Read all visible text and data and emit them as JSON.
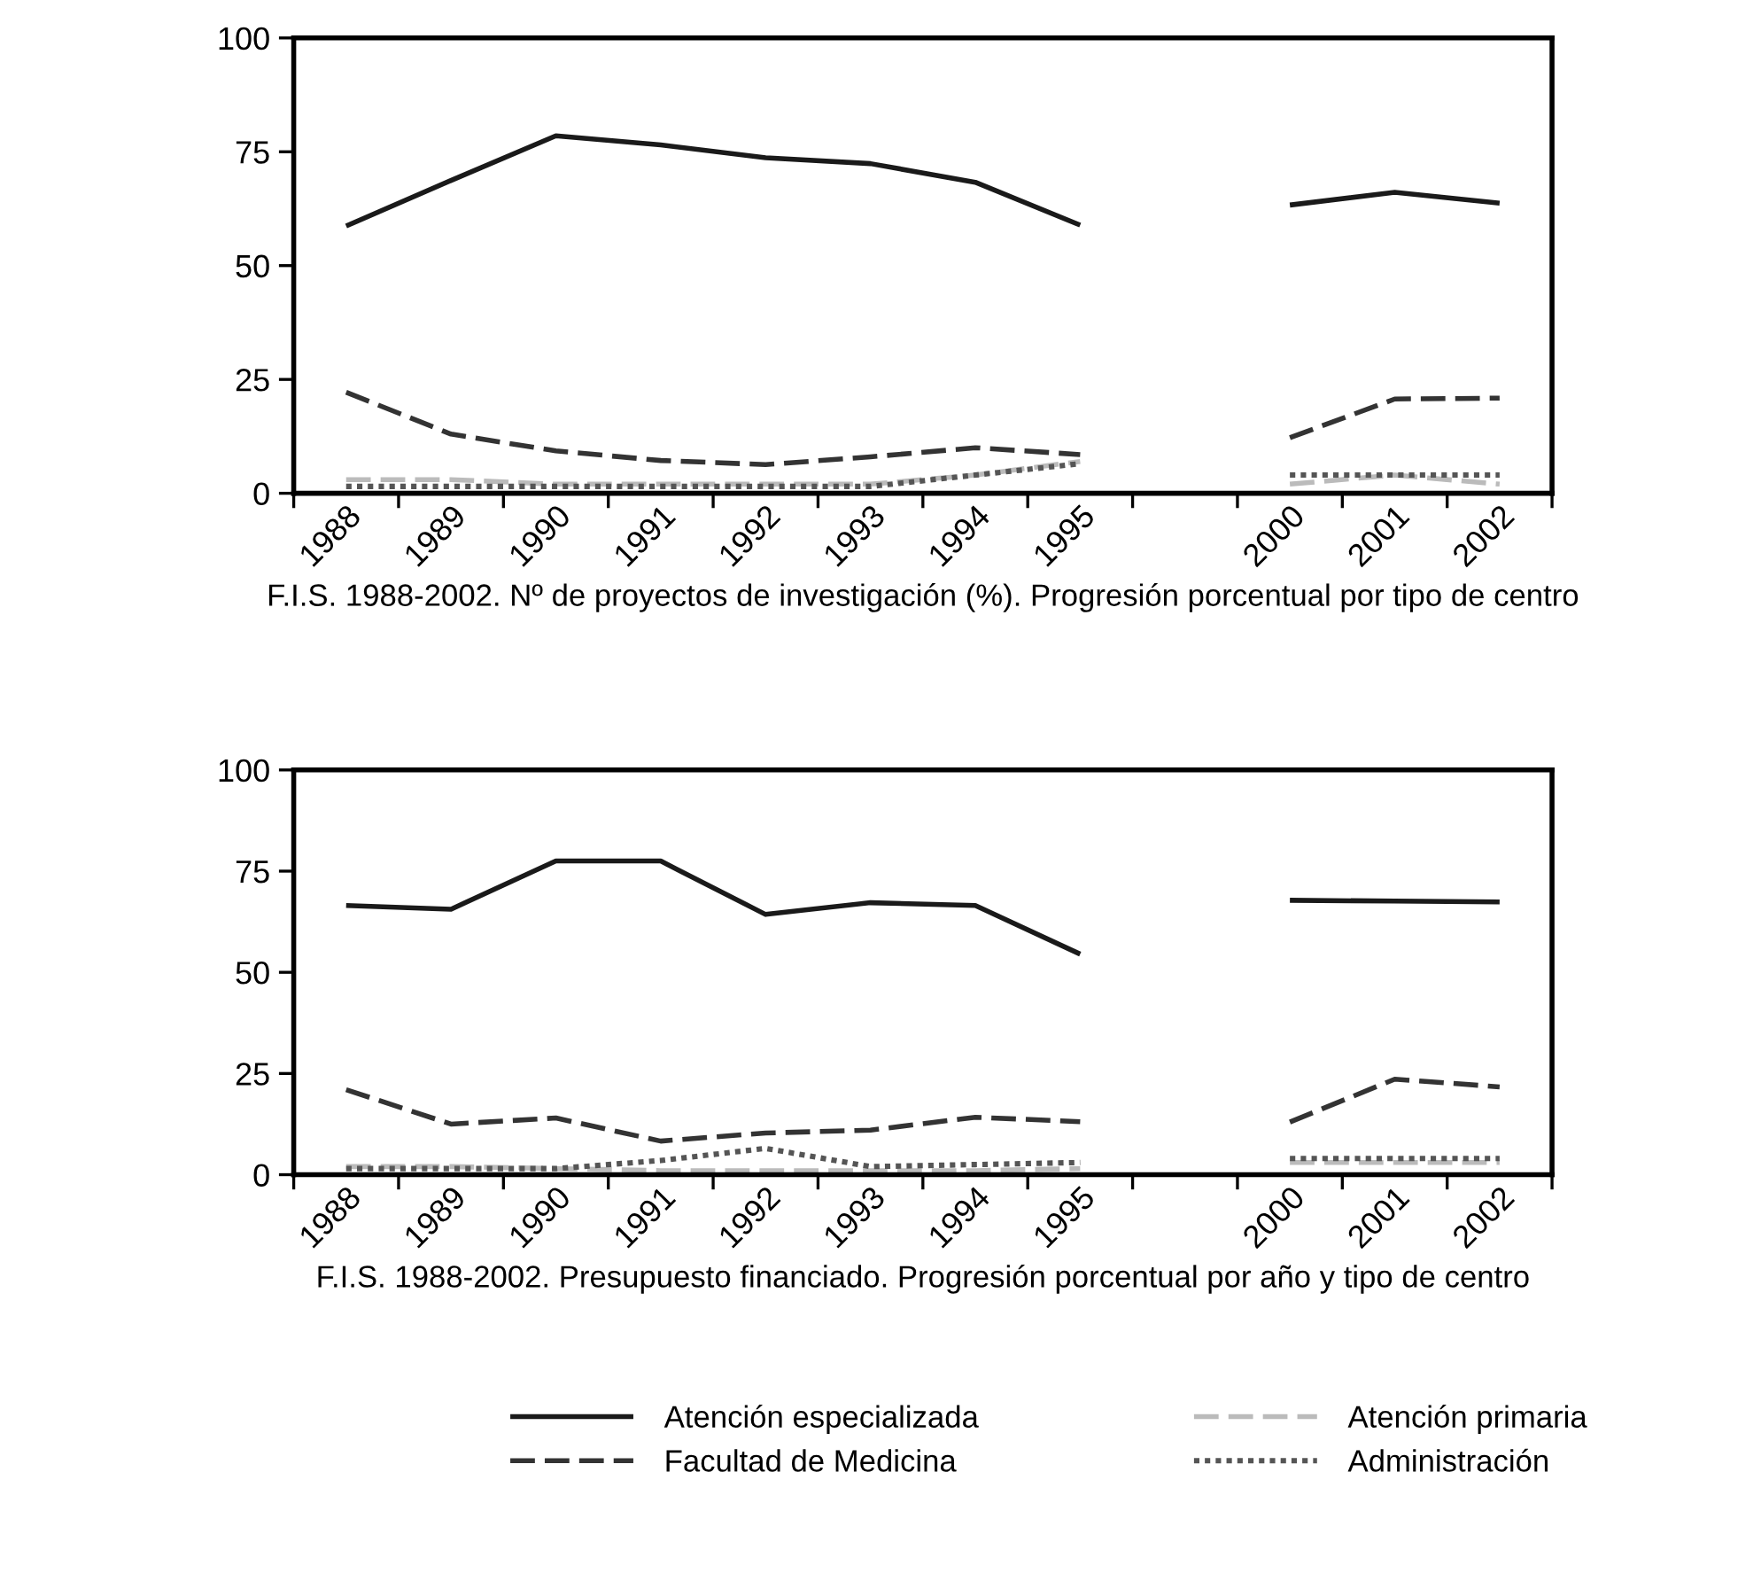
{
  "chart_data": [
    {
      "type": "line",
      "xlabel": "F.I.S. 1988-2002. Nº de proyectos de investigación (%). Progresión porcentual por tipo de centro",
      "categories": [
        "1988",
        "1989",
        "1990",
        "1991",
        "1992",
        "1993",
        "1994",
        "1995",
        null,
        "2000",
        "2001",
        "2002"
      ],
      "ylim": [
        0,
        100
      ],
      "yticks": [
        0,
        25,
        50,
        75,
        100
      ],
      "grid": false,
      "series": [
        {
          "color": "#1a1a1a",
          "line_style": "solid",
          "values": [
            58.7,
            68.7,
            78.5,
            76.5,
            73.7,
            72.4,
            68.3,
            58.9,
            null,
            63.3,
            66.1,
            63.7
          ]
        },
        {
          "color": "#333333",
          "line_style": "dashed",
          "values": [
            22.2,
            13,
            9.3,
            7.2,
            6.3,
            8,
            10,
            8.5,
            null,
            12.2,
            20.7,
            20.9
          ]
        },
        {
          "color": "#bbbbbb",
          "line_style": "dashed",
          "values": [
            3,
            3,
            2,
            2,
            2,
            2,
            4,
            7,
            null,
            2,
            4,
            2
          ]
        },
        {
          "color": "#555555",
          "line_style": "dotted",
          "values": [
            1.5,
            1.5,
            1.5,
            1.5,
            1.5,
            1.5,
            4,
            6.5,
            null,
            4,
            4,
            4
          ]
        }
      ]
    },
    {
      "type": "line",
      "xlabel": "F.I.S. 1988-2002. Presupuesto financiado. Progresión porcentual por año y tipo de centro",
      "categories": [
        "1988",
        "1989",
        "1990",
        "1991",
        "1992",
        "1993",
        "1994",
        "1995",
        null,
        "2000",
        "2001",
        "2002"
      ],
      "ylim": [
        0,
        100
      ],
      "yticks": [
        0,
        25,
        50,
        75,
        100
      ],
      "grid": false,
      "legend": "bottom",
      "series": [
        {
          "name": "Atención especializada",
          "color": "#1a1a1a",
          "line_style": "solid",
          "values": [
            66.5,
            65.6,
            77.5,
            77.5,
            64.3,
            67.2,
            66.5,
            54.5,
            null,
            67.8,
            67.6,
            67.4
          ]
        },
        {
          "name": "Facultad de Medicina",
          "color": "#333333",
          "line_style": "dashed",
          "values": [
            21,
            12.5,
            14,
            8.3,
            10.3,
            11,
            14.2,
            13.1,
            null,
            13,
            23.6,
            21.7
          ]
        },
        {
          "name": "Atención primaria",
          "color": "#bbbbbb",
          "line_style": "dashed",
          "values": [
            2,
            2,
            1.5,
            1,
            1,
            1,
            1,
            1.5,
            null,
            3,
            3,
            3
          ]
        },
        {
          "name": "Administración",
          "color": "#555555",
          "line_style": "dotted",
          "values": [
            1.5,
            1.5,
            1.5,
            3.5,
            6.5,
            2,
            2.5,
            3,
            null,
            4,
            4,
            4
          ]
        }
      ]
    }
  ]
}
